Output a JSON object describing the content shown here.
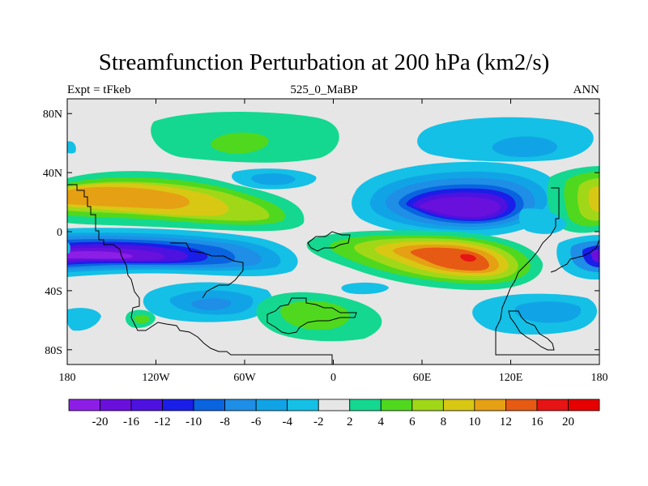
{
  "header": {
    "title": "Streamfunction Perturbation at 200 hPa (km2/s)",
    "left": "Expt = tFkeb",
    "center": "525_0_MaBP",
    "right": "ANN"
  },
  "map": {
    "projection": "cylindrical-equidistant",
    "background_color": "#e6e6e6",
    "lon_range": [
      -180,
      180
    ],
    "lat_range": [
      -90,
      90
    ],
    "x_ticks": [
      {
        "value": -180,
        "label": "180"
      },
      {
        "value": -120,
        "label": "120W"
      },
      {
        "value": -60,
        "label": "60W"
      },
      {
        "value": 0,
        "label": "0"
      },
      {
        "value": 60,
        "label": "60E"
      },
      {
        "value": 120,
        "label": "120E"
      },
      {
        "value": 180,
        "label": "180"
      }
    ],
    "y_ticks": [
      {
        "value": 80,
        "label": "80N"
      },
      {
        "value": 40,
        "label": "40N"
      },
      {
        "value": 0,
        "label": "0"
      },
      {
        "value": -40,
        "label": "40S"
      },
      {
        "value": -80,
        "label": "80S"
      }
    ]
  },
  "colorbar": {
    "labels": [
      "-20",
      "-16",
      "-12",
      "-10",
      "-8",
      "-6",
      "-4",
      "-2",
      "2",
      "4",
      "6",
      "8",
      "10",
      "12",
      "16",
      "20"
    ],
    "colors": [
      "#8d1ee6",
      "#6a10dc",
      "#4d12e0",
      "#1a1ee8",
      "#0a64e0",
      "#1e8ee6",
      "#10a4e6",
      "#14c0e6",
      "#e6e6e6",
      "#14d890",
      "#50d81e",
      "#a0d818",
      "#d8c814",
      "#e6a014",
      "#e65a14",
      "#e61414"
    ]
  }
}
